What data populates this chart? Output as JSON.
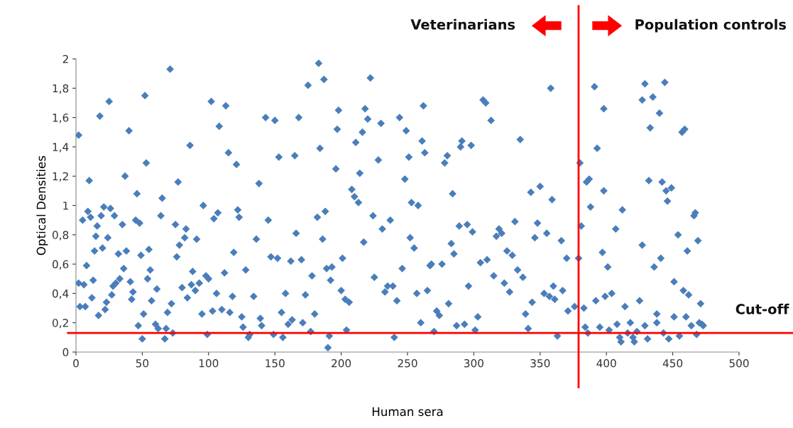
{
  "chart_data": {
    "type": "scatter",
    "xlabel": "Human sera",
    "ylabel": "Optical Densities",
    "annotations": [
      "Veterinarians",
      "Population controls",
      "Cut-off"
    ],
    "xlim": [
      0,
      500
    ],
    "ylim": [
      0,
      2
    ],
    "xticks": [
      0,
      50,
      100,
      150,
      200,
      250,
      300,
      350,
      400,
      450,
      500
    ],
    "yticks": [
      0,
      {
        "value": 0.2,
        "label": "0,2"
      },
      {
        "value": 0.4,
        "label": "0,4"
      },
      {
        "value": 0.6,
        "label": "0,6"
      },
      {
        "value": 0.8,
        "label": "0,8"
      },
      1,
      {
        "value": 1.2,
        "label": "1,2"
      },
      {
        "value": 1.4,
        "label": "1,4"
      },
      {
        "value": 1.6,
        "label": "1,6"
      },
      {
        "value": 1.8,
        "label": "1,8"
      },
      2
    ],
    "grid": false,
    "marker": "diamond",
    "ref_lines": [
      {
        "axis": "x",
        "value": 379,
        "color": "#ff0000"
      },
      {
        "axis": "y",
        "value": 0.13,
        "color": "#ff0000"
      }
    ],
    "series": [
      {
        "color": "#4a7ebb",
        "x": [
          2,
          3,
          2,
          5,
          6,
          7,
          8,
          9,
          10,
          11,
          12,
          13,
          14,
          15,
          16,
          17,
          18,
          19,
          20,
          21,
          22,
          23,
          24,
          25,
          26,
          27,
          28,
          29,
          30,
          32,
          33,
          35,
          36,
          37,
          38,
          40,
          41,
          42,
          43,
          45,
          46,
          47,
          48,
          49,
          50,
          51,
          52,
          53,
          54,
          55,
          56,
          57,
          60,
          61,
          62,
          64,
          65,
          67,
          68,
          69,
          71,
          72,
          73,
          75,
          76,
          77,
          78,
          80,
          82,
          83,
          84,
          86,
          87,
          88,
          90,
          91,
          93,
          95,
          96,
          98,
          99,
          100,
          102,
          103,
          104,
          106,
          107,
          108,
          110,
          112,
          113,
          115,
          116,
          118,
          119,
          121,
          122,
          123,
          125,
          126,
          128,
          130,
          131,
          134,
          136,
          138,
          139,
          140,
          143,
          145,
          147,
          149,
          150,
          152,
          153,
          155,
          156,
          158,
          160,
          162,
          163,
          165,
          166,
          168,
          170,
          171,
          173,
          175,
          177,
          178,
          180,
          182,
          183,
          184,
          186,
          187,
          188,
          189,
          190,
          191,
          192,
          193,
          196,
          197,
          198,
          200,
          201,
          203,
          204,
          206,
          208,
          210,
          211,
          213,
          214,
          216,
          217,
          218,
          220,
          222,
          224,
          225,
          228,
          230,
          231,
          233,
          235,
          237,
          239,
          240,
          242,
          244,
          246,
          248,
          249,
          251,
          252,
          253,
          255,
          257,
          258,
          260,
          261,
          262,
          263,
          265,
          267,
          268,
          270,
          272,
          274,
          276,
          278,
          280,
          281,
          283,
          284,
          285,
          287,
          289,
          290,
          291,
          293,
          295,
          296,
          298,
          299,
          301,
          303,
          305,
          307,
          309,
          310,
          313,
          315,
          317,
          319,
          321,
          323,
          325,
          327,
          329,
          331,
          333,
          335,
          337,
          339,
          341,
          343,
          344,
          346,
          348,
          350,
          353,
          355,
          357,
          358,
          359,
          360,
          361,
          363,
          366,
          367,
          370,
          371,
          376,
          379,
          380,
          381,
          385,
          387,
          388,
          392,
          391,
          393,
          397,
          398,
          398,
          401,
          404,
          407,
          412,
          414,
          420,
          427,
          427,
          429,
          432,
          433,
          435,
          436,
          438,
          440,
          441,
          442,
          444,
          445,
          446,
          449,
          451,
          454,
          457,
          459,
          458,
          461,
          462,
          466,
          467,
          469,
          471,
          470,
          383,
          384,
          386,
          395,
          399,
          402,
          408,
          410,
          411,
          416,
          418,
          421,
          423,
          425,
          429,
          431,
          438,
          443,
          447,
          451,
          455,
          460,
          464,
          468,
          472,
          473
        ],
        "values": [
          1.48,
          0.31,
          0.47,
          0.9,
          0.46,
          0.31,
          0.59,
          0.96,
          1.17,
          0.92,
          0.37,
          0.49,
          0.69,
          0.79,
          0.86,
          0.25,
          1.61,
          0.93,
          0.71,
          0.99,
          0.29,
          0.34,
          0.78,
          1.71,
          0.98,
          0.39,
          0.45,
          0.93,
          0.47,
          0.67,
          0.5,
          0.87,
          0.57,
          1.2,
          0.69,
          1.51,
          0.48,
          0.36,
          0.41,
          0.9,
          1.08,
          0.18,
          0.88,
          0.66,
          0.09,
          0.26,
          1.75,
          1.29,
          0.5,
          0.7,
          0.56,
          0.35,
          0.19,
          0.43,
          0.16,
          0.93,
          1.05,
          0.09,
          0.16,
          0.27,
          1.93,
          0.33,
          0.13,
          0.87,
          0.65,
          1.16,
          0.73,
          0.44,
          0.78,
          0.84,
          0.37,
          1.41,
          0.46,
          0.55,
          0.42,
          0.77,
          0.47,
          0.26,
          1.0,
          0.52,
          0.12,
          0.5,
          1.71,
          0.28,
          0.91,
          0.4,
          0.95,
          1.54,
          0.29,
          0.54,
          1.68,
          1.36,
          0.27,
          0.38,
          0.68,
          1.28,
          0.97,
          0.92,
          0.24,
          0.17,
          0.56,
          0.1,
          0.12,
          0.38,
          0.77,
          1.15,
          0.23,
          0.18,
          1.6,
          0.9,
          0.65,
          0.12,
          1.58,
          0.64,
          1.33,
          0.27,
          0.1,
          0.4,
          0.19,
          0.62,
          0.22,
          1.34,
          0.81,
          1.6,
          0.63,
          0.2,
          0.39,
          1.82,
          0.14,
          0.52,
          0.26,
          0.92,
          1.97,
          1.39,
          0.77,
          1.86,
          0.96,
          0.57,
          0.03,
          0.11,
          0.49,
          0.58,
          1.25,
          1.52,
          1.65,
          0.42,
          0.64,
          0.36,
          0.15,
          0.34,
          1.11,
          1.06,
          1.43,
          1.02,
          1.22,
          1.5,
          0.75,
          1.66,
          1.59,
          1.87,
          0.93,
          0.51,
          1.31,
          1.56,
          0.84,
          0.41,
          0.45,
          0.9,
          0.45,
          0.1,
          0.35,
          1.6,
          0.57,
          1.18,
          1.51,
          1.33,
          0.78,
          1.02,
          0.71,
          0.4,
          1.0,
          0.2,
          1.44,
          1.68,
          1.36,
          0.42,
          0.59,
          0.6,
          0.14,
          0.28,
          0.25,
          0.6,
          1.29,
          1.34,
          0.33,
          0.74,
          1.08,
          0.67,
          0.18,
          0.86,
          1.4,
          1.44,
          0.19,
          0.87,
          0.45,
          1.41,
          0.82,
          0.15,
          0.24,
          0.61,
          1.72,
          1.7,
          0.63,
          1.58,
          0.52,
          0.79,
          0.84,
          0.81,
          0.47,
          0.69,
          0.41,
          0.66,
          0.89,
          0.56,
          1.45,
          0.51,
          0.26,
          0.16,
          1.09,
          0.34,
          0.78,
          0.88,
          1.13,
          0.4,
          0.81,
          0.38,
          1.8,
          1.04,
          0.45,
          0.36,
          0.11,
          0.76,
          0.42,
          0.64,
          0.28,
          0.31,
          0.64,
          1.29,
          0.86,
          1.16,
          1.18,
          0.99,
          0.35,
          1.81,
          1.39,
          0.68,
          1.1,
          1.66,
          0.58,
          0.4,
          0.84,
          0.97,
          0.31,
          0.1,
          0.73,
          1.72,
          1.83,
          1.17,
          1.53,
          1.74,
          0.58,
          0.26,
          1.63,
          0.64,
          1.16,
          1.84,
          1.1,
          1.03,
          1.12,
          0.48,
          0.8,
          1.5,
          1.52,
          0.42,
          0.69,
          0.39,
          0.93,
          0.95,
          0.76,
          0.33,
          0.2,
          0.3,
          0.17,
          0.13,
          0.17,
          0.38,
          0.15,
          0.19,
          0.1,
          0.07,
          0.13,
          0.2,
          0.07,
          0.14,
          0.35,
          0.18,
          0.09,
          0.2,
          0.13,
          0.09,
          0.24,
          0.11,
          0.24,
          0.18,
          0.12,
          0.19,
          0.18
        ]
      }
    ]
  }
}
